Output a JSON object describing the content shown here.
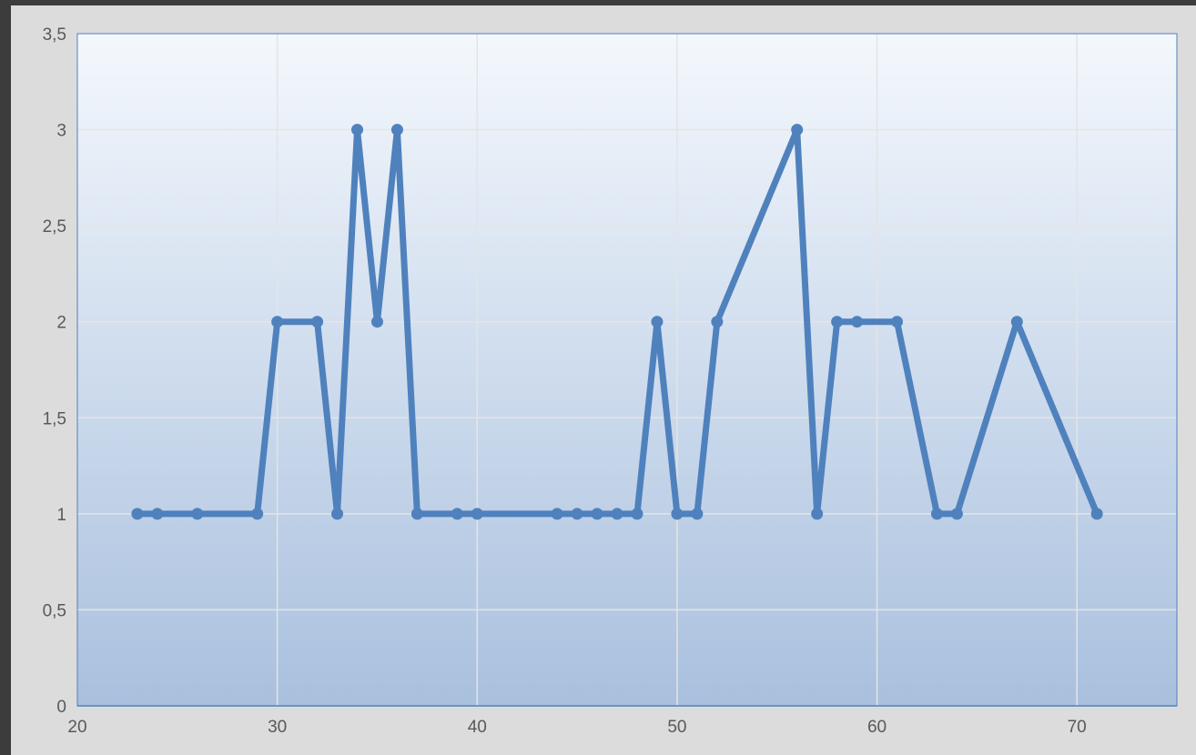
{
  "colors": {
    "frame_background": "#dcdcdc",
    "page_background": "#3c3c3c",
    "plot_gradient_top": "#f4f8fd",
    "plot_gradient_bottom": "#a9c0de",
    "series_line": "#4f81bd",
    "gridline": "#e4e4e4",
    "plot_border": "#4f81bd"
  },
  "chart_data": {
    "type": "line",
    "title": "",
    "xlabel": "",
    "ylabel": "",
    "xlim": [
      20,
      75
    ],
    "ylim": [
      0,
      3.5
    ],
    "grid": true,
    "legend": "none",
    "x_ticks": [
      {
        "value": 20,
        "label": "20"
      },
      {
        "value": 30,
        "label": "30"
      },
      {
        "value": 40,
        "label": "40"
      },
      {
        "value": 50,
        "label": "50"
      },
      {
        "value": 60,
        "label": "60"
      },
      {
        "value": 70,
        "label": "70"
      }
    ],
    "y_ticks": [
      {
        "value": 0,
        "label": "0"
      },
      {
        "value": 0.5,
        "label": "0,5"
      },
      {
        "value": 1,
        "label": "1"
      },
      {
        "value": 1.5,
        "label": "1,5"
      },
      {
        "value": 2,
        "label": "2"
      },
      {
        "value": 2.5,
        "label": "2,5"
      },
      {
        "value": 3,
        "label": "3"
      },
      {
        "value": 3.5,
        "label": "3,5"
      }
    ],
    "series": [
      {
        "x": [
          23,
          24,
          26,
          29,
          30,
          32,
          33,
          34,
          35,
          36,
          37,
          39,
          40,
          44,
          45,
          46,
          47,
          48,
          49,
          50,
          51,
          52,
          56,
          57,
          58,
          59,
          61,
          63,
          64,
          67,
          71
        ],
        "y": [
          1,
          1,
          1,
          1,
          2,
          2,
          1,
          3,
          2,
          3,
          1,
          1,
          1,
          1,
          1,
          1,
          1,
          1,
          2,
          1,
          1,
          2,
          3,
          1,
          2,
          2,
          2,
          1,
          1,
          2,
          1
        ]
      }
    ]
  }
}
